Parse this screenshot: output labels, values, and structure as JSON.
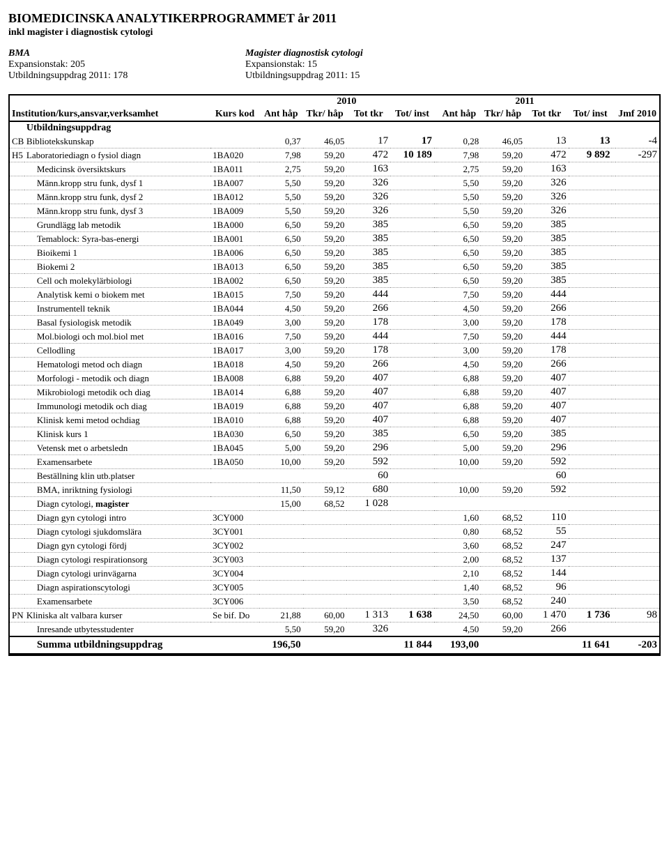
{
  "title": "BIOMEDICINSKA ANALYTIKERPROGRAMMET år 2011",
  "subtitle": "inkl magister i diagnostisk cytologi",
  "left_head": {
    "l1": "BMA",
    "l2": "Expansionstak: 205",
    "l3": "Utbildningsuppdrag 2011: 178"
  },
  "right_head": {
    "l1": "Magister diagnostisk cytologi",
    "l2": "Expansionstak: 15",
    "l3": "Utbildningsuppdrag 2011: 15"
  },
  "year_left": "2010",
  "year_right": "2011",
  "headers": {
    "inst": "Institution/kurs,ansvar,verksamhet",
    "kurs": "Kurs kod",
    "ant": "Ant håp",
    "tkr_hap": "Tkr/ håp",
    "tot_tkr": "Tot tkr",
    "tot_inst": "Tot/ inst",
    "jmf": "Jmf 2010"
  },
  "section_label": "Utbildningsuppdrag",
  "rows": [
    {
      "prefix": "CB",
      "name": "Bibliotekskunskap",
      "kurs": "",
      "a_ant": "0,37",
      "a_tkr": "46,05",
      "a_tot": "17",
      "a_inst": "17",
      "b_ant": "0,28",
      "b_tkr": "46,05",
      "b_tot": "13",
      "b_inst": "13",
      "jmf": "-4"
    },
    {
      "prefix": "H5",
      "name": "Laboratoriediagn o fysiol diagn",
      "kurs": "1BA020",
      "a_ant": "7,98",
      "a_tkr": "59,20",
      "a_tot": "472",
      "a_inst": "10 189",
      "b_ant": "7,98",
      "b_tkr": "59,20",
      "b_tot": "472",
      "b_inst": "9 892",
      "jmf": "-297"
    },
    {
      "sub": true,
      "name": "Medicinsk översiktskurs",
      "kurs": "1BA011",
      "a_ant": "2,75",
      "a_tkr": "59,20",
      "a_tot": "163",
      "a_inst": "",
      "b_ant": "2,75",
      "b_tkr": "59,20",
      "b_tot": "163",
      "b_inst": "",
      "jmf": ""
    },
    {
      "sub": true,
      "name": "Männ.kropp stru funk, dysf 1",
      "kurs": "1BA007",
      "a_ant": "5,50",
      "a_tkr": "59,20",
      "a_tot": "326",
      "a_inst": "",
      "b_ant": "5,50",
      "b_tkr": "59,20",
      "b_tot": "326",
      "b_inst": "",
      "jmf": ""
    },
    {
      "sub": true,
      "name": "Männ.kropp stru funk, dysf 2",
      "kurs": "1BA012",
      "a_ant": "5,50",
      "a_tkr": "59,20",
      "a_tot": "326",
      "a_inst": "",
      "b_ant": "5,50",
      "b_tkr": "59,20",
      "b_tot": "326",
      "b_inst": "",
      "jmf": ""
    },
    {
      "sub": true,
      "name": "Männ.kropp stru funk, dysf 3",
      "kurs": "1BA009",
      "a_ant": "5,50",
      "a_tkr": "59,20",
      "a_tot": "326",
      "a_inst": "",
      "b_ant": "5,50",
      "b_tkr": "59,20",
      "b_tot": "326",
      "b_inst": "",
      "jmf": ""
    },
    {
      "sub": true,
      "name": "Grundlägg lab metodik",
      "kurs": "1BA000",
      "a_ant": "6,50",
      "a_tkr": "59,20",
      "a_tot": "385",
      "a_inst": "",
      "b_ant": "6,50",
      "b_tkr": "59,20",
      "b_tot": "385",
      "b_inst": "",
      "jmf": ""
    },
    {
      "sub": true,
      "name": "Temablock: Syra-bas-energi",
      "kurs": "1BA001",
      "a_ant": "6,50",
      "a_tkr": "59,20",
      "a_tot": "385",
      "a_inst": "",
      "b_ant": "6,50",
      "b_tkr": "59,20",
      "b_tot": "385",
      "b_inst": "",
      "jmf": ""
    },
    {
      "sub": true,
      "name": "Bioikemi 1",
      "kurs": "1BA006",
      "a_ant": "6,50",
      "a_tkr": "59,20",
      "a_tot": "385",
      "a_inst": "",
      "b_ant": "6,50",
      "b_tkr": "59,20",
      "b_tot": "385",
      "b_inst": "",
      "jmf": ""
    },
    {
      "sub": true,
      "name": "Biokemi 2",
      "kurs": "1BA013",
      "a_ant": "6,50",
      "a_tkr": "59,20",
      "a_tot": "385",
      "a_inst": "",
      "b_ant": "6,50",
      "b_tkr": "59,20",
      "b_tot": "385",
      "b_inst": "",
      "jmf": ""
    },
    {
      "sub": true,
      "name": "Cell och molekylärbiologi",
      "kurs": "1BA002",
      "a_ant": "6,50",
      "a_tkr": "59,20",
      "a_tot": "385",
      "a_inst": "",
      "b_ant": "6,50",
      "b_tkr": "59,20",
      "b_tot": "385",
      "b_inst": "",
      "jmf": ""
    },
    {
      "sub": true,
      "name": "Analytisk kemi o biokem met",
      "kurs": "1BA015",
      "a_ant": "7,50",
      "a_tkr": "59,20",
      "a_tot": "444",
      "a_inst": "",
      "b_ant": "7,50",
      "b_tkr": "59,20",
      "b_tot": "444",
      "b_inst": "",
      "jmf": ""
    },
    {
      "sub": true,
      "name": "Instrumentell teknik",
      "kurs": "1BA044",
      "a_ant": "4,50",
      "a_tkr": "59,20",
      "a_tot": "266",
      "a_inst": "",
      "b_ant": "4,50",
      "b_tkr": "59,20",
      "b_tot": "266",
      "b_inst": "",
      "jmf": ""
    },
    {
      "sub": true,
      "name": "Basal fysiologisk metodik",
      "kurs": "1BA049",
      "a_ant": "3,00",
      "a_tkr": "59,20",
      "a_tot": "178",
      "a_inst": "",
      "b_ant": "3,00",
      "b_tkr": "59,20",
      "b_tot": "178",
      "b_inst": "",
      "jmf": ""
    },
    {
      "sub": true,
      "name": "Mol.biologi och mol.biol met",
      "kurs": "1BA016",
      "a_ant": "7,50",
      "a_tkr": "59,20",
      "a_tot": "444",
      "a_inst": "",
      "b_ant": "7,50",
      "b_tkr": "59,20",
      "b_tot": "444",
      "b_inst": "",
      "jmf": ""
    },
    {
      "sub": true,
      "name": "Cellodling",
      "kurs": "1BA017",
      "a_ant": "3,00",
      "a_tkr": "59,20",
      "a_tot": "178",
      "a_inst": "",
      "b_ant": "3,00",
      "b_tkr": "59,20",
      "b_tot": "178",
      "b_inst": "",
      "jmf": ""
    },
    {
      "sub": true,
      "name": "Hematologi metod och diagn",
      "kurs": "1BA018",
      "a_ant": "4,50",
      "a_tkr": "59,20",
      "a_tot": "266",
      "a_inst": "",
      "b_ant": "4,50",
      "b_tkr": "59,20",
      "b_tot": "266",
      "b_inst": "",
      "jmf": ""
    },
    {
      "sub": true,
      "name": "Morfologi - metodik och diagn",
      "kurs": "1BA008",
      "a_ant": "6,88",
      "a_tkr": "59,20",
      "a_tot": "407",
      "a_inst": "",
      "b_ant": "6,88",
      "b_tkr": "59,20",
      "b_tot": "407",
      "b_inst": "",
      "jmf": ""
    },
    {
      "sub": true,
      "name": "Mikrobiologi metodik och diag",
      "kurs": "1BA014",
      "a_ant": "6,88",
      "a_tkr": "59,20",
      "a_tot": "407",
      "a_inst": "",
      "b_ant": "6,88",
      "b_tkr": "59,20",
      "b_tot": "407",
      "b_inst": "",
      "jmf": ""
    },
    {
      "sub": true,
      "name": "Immunologi metodik och diag",
      "kurs": "1BA019",
      "a_ant": "6,88",
      "a_tkr": "59,20",
      "a_tot": "407",
      "a_inst": "",
      "b_ant": "6,88",
      "b_tkr": "59,20",
      "b_tot": "407",
      "b_inst": "",
      "jmf": ""
    },
    {
      "sub": true,
      "name": "Klinisk kemi metod ochdiag",
      "kurs": "1BA010",
      "a_ant": "6,88",
      "a_tkr": "59,20",
      "a_tot": "407",
      "a_inst": "",
      "b_ant": "6,88",
      "b_tkr": "59,20",
      "b_tot": "407",
      "b_inst": "",
      "jmf": ""
    },
    {
      "sub": true,
      "name": "Klinisk kurs 1",
      "kurs": "1BA030",
      "a_ant": "6,50",
      "a_tkr": "59,20",
      "a_tot": "385",
      "a_inst": "",
      "b_ant": "6,50",
      "b_tkr": "59,20",
      "b_tot": "385",
      "b_inst": "",
      "jmf": ""
    },
    {
      "sub": true,
      "name": "Vetensk met o arbetsledn",
      "kurs": "1BA045",
      "a_ant": "5,00",
      "a_tkr": "59,20",
      "a_tot": "296",
      "a_inst": "",
      "b_ant": "5,00",
      "b_tkr": "59,20",
      "b_tot": "296",
      "b_inst": "",
      "jmf": ""
    },
    {
      "sub": true,
      "name": "Examensarbete",
      "kurs": "1BA050",
      "a_ant": "10,00",
      "a_tkr": "59,20",
      "a_tot": "592",
      "a_inst": "",
      "b_ant": "10,00",
      "b_tkr": "59,20",
      "b_tot": "592",
      "b_inst": "",
      "jmf": ""
    },
    {
      "sub": true,
      "name": "Beställning klin utb.platser",
      "kurs": "",
      "a_ant": "",
      "a_tkr": "",
      "a_tot": "60",
      "a_inst": "",
      "b_ant": "",
      "b_tkr": "",
      "b_tot": "60",
      "b_inst": "",
      "jmf": ""
    },
    {
      "sub": true,
      "name": "BMA, inriktning fysiologi",
      "kurs": "",
      "a_ant": "11,50",
      "a_tkr": "59,12",
      "a_tot": "680",
      "a_inst": "",
      "b_ant": "10,00",
      "b_tkr": "59,20",
      "b_tot": "592",
      "b_inst": "",
      "jmf": ""
    },
    {
      "sub": true,
      "boldname": true,
      "name": "Diagn cytologi, magister",
      "kurs": "",
      "a_ant": "15,00",
      "a_tkr": "68,52",
      "a_tot": "1 028",
      "a_inst": "",
      "b_ant": "",
      "b_tkr": "",
      "b_tot": "",
      "b_inst": "",
      "jmf": ""
    },
    {
      "sub": true,
      "name": "Diagn gyn cytologi intro",
      "kurs": "3CY000",
      "a_ant": "",
      "a_tkr": "",
      "a_tot": "",
      "a_inst": "",
      "b_ant": "1,60",
      "b_tkr": "68,52",
      "b_tot": "110",
      "b_inst": "",
      "jmf": ""
    },
    {
      "sub": true,
      "name": "Diagn cytologi sjukdomslära",
      "kurs": "3CY001",
      "a_ant": "",
      "a_tkr": "",
      "a_tot": "",
      "a_inst": "",
      "b_ant": "0,80",
      "b_tkr": "68,52",
      "b_tot": "55",
      "b_inst": "",
      "jmf": ""
    },
    {
      "sub": true,
      "name": "Diagn gyn cytologi fördj",
      "kurs": "3CY002",
      "a_ant": "",
      "a_tkr": "",
      "a_tot": "",
      "a_inst": "",
      "b_ant": "3,60",
      "b_tkr": "68,52",
      "b_tot": "247",
      "b_inst": "",
      "jmf": ""
    },
    {
      "sub": true,
      "name": "Diagn cytologi respirationsorg",
      "kurs": "3CY003",
      "a_ant": "",
      "a_tkr": "",
      "a_tot": "",
      "a_inst": "",
      "b_ant": "2,00",
      "b_tkr": "68,52",
      "b_tot": "137",
      "b_inst": "",
      "jmf": ""
    },
    {
      "sub": true,
      "name": "Diagn cytologi urinvägarna",
      "kurs": "3CY004",
      "a_ant": "",
      "a_tkr": "",
      "a_tot": "",
      "a_inst": "",
      "b_ant": "2,10",
      "b_tkr": "68,52",
      "b_tot": "144",
      "b_inst": "",
      "jmf": ""
    },
    {
      "sub": true,
      "name": "Diagn aspirationscytologi",
      "kurs": "3CY005",
      "a_ant": "",
      "a_tkr": "",
      "a_tot": "",
      "a_inst": "",
      "b_ant": "1,40",
      "b_tkr": "68,52",
      "b_tot": "96",
      "b_inst": "",
      "jmf": ""
    },
    {
      "sub": true,
      "name": "Examensarbete",
      "kurs": "3CY006",
      "a_ant": "",
      "a_tkr": "",
      "a_tot": "",
      "a_inst": "",
      "b_ant": "3,50",
      "b_tkr": "68,52",
      "b_tot": "240",
      "b_inst": "",
      "jmf": ""
    },
    {
      "prefix": "PN",
      "name": "Kliniska alt valbara kurser",
      "kurs": "Se bif. Do",
      "a_ant": "21,88",
      "a_tkr": "60,00",
      "a_tot": "1 313",
      "a_inst": "1 638",
      "b_ant": "24,50",
      "b_tkr": "60,00",
      "b_tot": "1 470",
      "b_inst": "1 736",
      "jmf": "98"
    },
    {
      "sub": true,
      "name": "Inresande utbytesstudenter",
      "kurs": "",
      "a_ant": "5,50",
      "a_tkr": "59,20",
      "a_tot": "326",
      "a_inst": "",
      "b_ant": "4,50",
      "b_tkr": "59,20",
      "b_tot": "266",
      "b_inst": "",
      "jmf": ""
    }
  ],
  "summary": {
    "label": "Summa utbildningsuppdrag",
    "a_ant": "196,50",
    "a_inst": "11 844",
    "b_ant": "193,00",
    "b_inst": "11 641",
    "jmf": "-203"
  }
}
